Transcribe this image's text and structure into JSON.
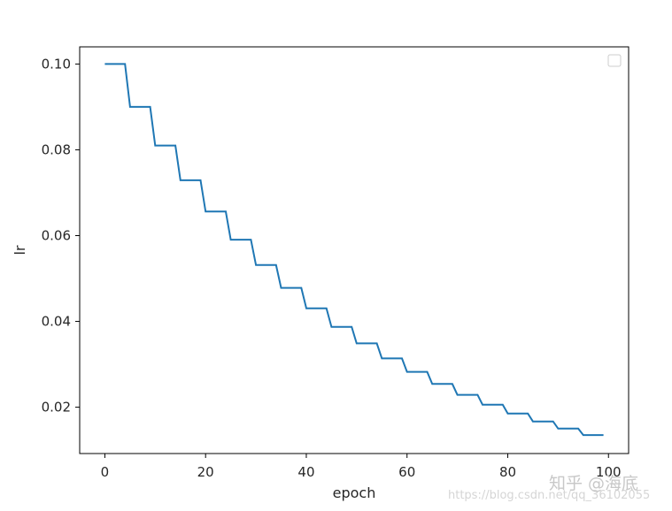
{
  "chart_data": {
    "type": "line",
    "title": "",
    "xlabel": "epoch",
    "ylabel": "lr",
    "xlim": [
      -5,
      104
    ],
    "ylim": [
      0.0092,
      0.104
    ],
    "xticks": [
      0,
      20,
      40,
      60,
      80,
      100
    ],
    "xtick_labels": [
      "0",
      "20",
      "40",
      "60",
      "80",
      "100"
    ],
    "yticks": [
      0.02,
      0.04,
      0.06,
      0.08,
      0.1
    ],
    "ytick_labels": [
      "0.02",
      "0.04",
      "0.06",
      "0.08",
      "0.10"
    ],
    "grid": false,
    "legend": {
      "placement": "top-right",
      "entries": []
    },
    "series": [
      {
        "color": "#1f77b4",
        "drawstyle": "steps",
        "x": [
          0,
          4,
          5,
          9,
          10,
          14,
          15,
          19,
          20,
          24,
          25,
          29,
          30,
          34,
          35,
          39,
          40,
          44,
          45,
          49,
          50,
          54,
          55,
          59,
          60,
          64,
          65,
          69,
          70,
          74,
          75,
          79,
          80,
          84,
          85,
          89,
          90,
          94,
          95,
          99
        ],
        "y": [
          0.1,
          0.1,
          0.09,
          0.09,
          0.081,
          0.081,
          0.0729,
          0.0729,
          0.06561,
          0.06561,
          0.05905,
          0.05905,
          0.05314,
          0.05314,
          0.04783,
          0.04783,
          0.04305,
          0.04305,
          0.03874,
          0.03874,
          0.03487,
          0.03487,
          0.03138,
          0.03138,
          0.02824,
          0.02824,
          0.02542,
          0.02542,
          0.02288,
          0.02288,
          0.02059,
          0.02059,
          0.01853,
          0.01853,
          0.01668,
          0.01668,
          0.01501,
          0.01501,
          0.01351,
          0.01351
        ]
      }
    ]
  },
  "watermark": {
    "url": "https://blog.csdn.net/qq_36102055",
    "brand": "知乎 @海底"
  }
}
